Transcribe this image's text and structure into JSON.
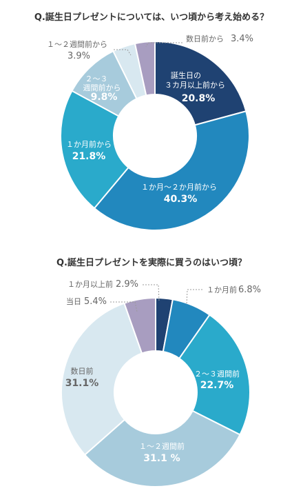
{
  "chart_data": [
    {
      "type": "pie",
      "title": "Q.誕生日プレゼントについては、いつ頃から考え始める？",
      "categories": [
        "誕生日の３カ月以上前から",
        "１か月～２か月前から",
        "１か月前から",
        "２～３週間前から",
        "１～２週間前から",
        "数日前から"
      ],
      "values": [
        20.8,
        40.3,
        21.8,
        9.8,
        3.9,
        3.4
      ],
      "value_labels": [
        "20.8%",
        "40.3%",
        "21.8%",
        "9.8%",
        "3.9%",
        "3.4%"
      ],
      "colors": [
        "#1f4272",
        "#2288be",
        "#2aaacb",
        "#a7cbdc",
        "#d8e8f0",
        "#a89dc0"
      ]
    },
    {
      "type": "pie",
      "title": "Q.誕生日プレゼントを実際に買うのはいつ頃？",
      "categories": [
        "１か月以上前",
        "１か月前",
        "２～３週間前",
        "１～２週間前",
        "数日前",
        "当日"
      ],
      "values": [
        2.9,
        6.8,
        22.7,
        31.1,
        31.1,
        5.4
      ],
      "value_labels": [
        "2.9%",
        "6.8%",
        "22.7%",
        "31.1 %",
        "31.1%",
        "5.4%"
      ],
      "colors": [
        "#1f4272",
        "#2288be",
        "#2aaacb",
        "#a7cbdc",
        "#d8e8f0",
        "#a89dc0"
      ]
    }
  ]
}
